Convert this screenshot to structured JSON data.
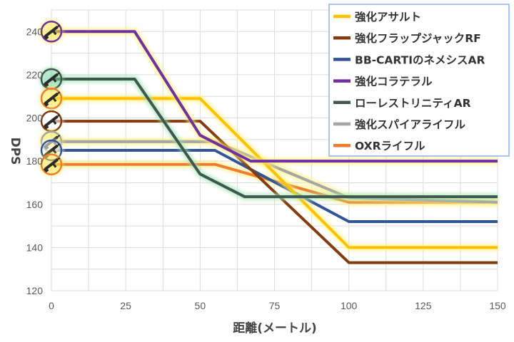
{
  "chart_data": {
    "type": "line",
    "xlabel": "距離(メートル)",
    "ylabel": "DPS",
    "xlim": [
      0,
      150
    ],
    "ylim": [
      120,
      250
    ],
    "x_ticks": [
      0,
      25,
      50,
      75,
      100,
      125,
      150
    ],
    "y_ticks": [
      120,
      140,
      160,
      180,
      200,
      220,
      240
    ],
    "grid": true,
    "legend_position": "top-right",
    "series": [
      {
        "name": "強化アサルト",
        "color": "#FFC000",
        "x": [
          0,
          50,
          100,
          150
        ],
        "y": [
          209,
          209,
          140,
          140
        ]
      },
      {
        "name": "強化フラップジャックRF",
        "color": "#843C0C",
        "x": [
          0,
          50,
          100,
          150
        ],
        "y": [
          198.5,
          198.5,
          133,
          133
        ]
      },
      {
        "name": "BB-CARTIのネメシスAR",
        "color": "#2F5597",
        "x": [
          0,
          55,
          100,
          150
        ],
        "y": [
          185,
          185,
          152,
          152
        ]
      },
      {
        "name": "強化コラテラル",
        "color": "#7030A0",
        "x": [
          0,
          28,
          50,
          67,
          150
        ],
        "y": [
          240,
          240,
          192,
          180,
          180
        ]
      },
      {
        "name": "ローレストリニティAR",
        "color": "#3F5750",
        "x": [
          0,
          28,
          50,
          65,
          150
        ],
        "y": [
          218,
          218,
          174,
          163.5,
          163.5
        ]
      },
      {
        "name": "強化スパイアライフル",
        "color": "#A5A5A5",
        "x": [
          0,
          55,
          100,
          150
        ],
        "y": [
          189,
          189,
          163,
          161
        ]
      },
      {
        "name": "OXRライフル",
        "color": "#ED7D31",
        "x": [
          0,
          55,
          100,
          150
        ],
        "y": [
          178.5,
          178.5,
          161,
          161
        ]
      }
    ],
    "markers": [
      {
        "series": "強化コラテラル",
        "y": 240,
        "ring": "#7030A0",
        "glow": "#FFE84A",
        "icon": "rifle-icon"
      },
      {
        "series": "ローレストリニティAR",
        "y": 218,
        "ring": "#3F5750",
        "glow": "#7FD3A0",
        "icon": "rifle-icon"
      },
      {
        "series": "強化アサルト",
        "y": 209,
        "ring": "#ED7D31",
        "glow": "#FFE84A",
        "icon": "rifle-icon"
      },
      {
        "series": "強化フラップジャックRF",
        "y": 198.5,
        "ring": "#843C0C",
        "glow": "#FFFFFF",
        "icon": "rifle-icon"
      },
      {
        "series": "強化スパイアライフル",
        "y": 189,
        "ring": "#A5A5A5",
        "glow": "#FFE84A",
        "icon": "rifle-icon"
      },
      {
        "series": "BB-CARTIのネメシスAR",
        "y": 185,
        "ring": "#2F5597",
        "glow": "#FFFFFF",
        "icon": "rifle-icon"
      },
      {
        "series": "OXRライフル",
        "y": 178.5,
        "ring": "#ED7D31",
        "glow": "#FFE84A",
        "icon": "rifle-icon"
      }
    ]
  }
}
